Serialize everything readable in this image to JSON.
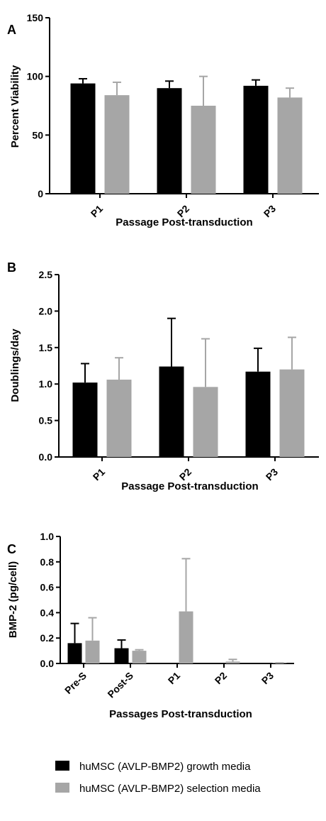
{
  "colors": {
    "growth": "#000000",
    "selection": "#a6a6a6"
  },
  "legend": [
    {
      "name": "huMSC (AVLP-BMP2) growth media",
      "color": "#000000"
    },
    {
      "name": "huMSC (AVLP-BMP2) selection media",
      "color": "#a6a6a6"
    }
  ],
  "chart_data": [
    {
      "panel": "A",
      "type": "bar",
      "ylabel": "Percent Viability",
      "xlabel": "Passage Post-transduction",
      "ylim": [
        0,
        150
      ],
      "yticks": [
        0,
        50,
        100,
        150
      ],
      "ytick_labels": [
        "0",
        "50",
        "100",
        "150"
      ],
      "categories": [
        "P1",
        "P2",
        "P3"
      ],
      "series": [
        {
          "values": [
            94,
            90,
            92
          ],
          "errors": [
            4,
            6,
            5
          ]
        },
        {
          "values": [
            84,
            75,
            82
          ],
          "errors": [
            11,
            25,
            8
          ]
        }
      ]
    },
    {
      "panel": "B",
      "type": "bar",
      "ylabel": "Doublings/day",
      "xlabel": "Passage Post-transduction",
      "ylim": [
        0,
        2.5
      ],
      "yticks": [
        0,
        0.5,
        1.0,
        1.5,
        2.0,
        2.5
      ],
      "ytick_labels": [
        "0.0",
        "0.5",
        "1.0",
        "1.5",
        "2.0",
        "2.5"
      ],
      "categories": [
        "P1",
        "P2",
        "P3"
      ],
      "series": [
        {
          "values": [
            1.02,
            1.24,
            1.17
          ],
          "errors": [
            0.26,
            0.66,
            0.32
          ]
        },
        {
          "values": [
            1.06,
            0.96,
            1.2
          ],
          "errors": [
            0.3,
            0.66,
            0.44
          ]
        }
      ]
    },
    {
      "panel": "C",
      "type": "bar",
      "ylabel": "BMP-2 (pg/cell)",
      "xlabel": "Passages Post-transduction",
      "ylim": [
        0,
        1.0
      ],
      "yticks": [
        0,
        0.2,
        0.4,
        0.6,
        0.8,
        1.0
      ],
      "ytick_labels": [
        "0.0",
        "0.2",
        "0.4",
        "0.6",
        "0.8",
        "1.0"
      ],
      "categories": [
        "Pre-S",
        "Post-S",
        "P1",
        "P2",
        "P3"
      ],
      "series": [
        {
          "values": [
            0.16,
            0.12,
            0,
            0,
            0
          ],
          "errors": [
            0.155,
            0.065,
            0,
            0,
            0
          ]
        },
        {
          "values": [
            0.18,
            0.1,
            0.41,
            0.015,
            0.003
          ],
          "errors": [
            0.18,
            0.008,
            0.415,
            0.017,
            0.002
          ]
        }
      ]
    }
  ]
}
